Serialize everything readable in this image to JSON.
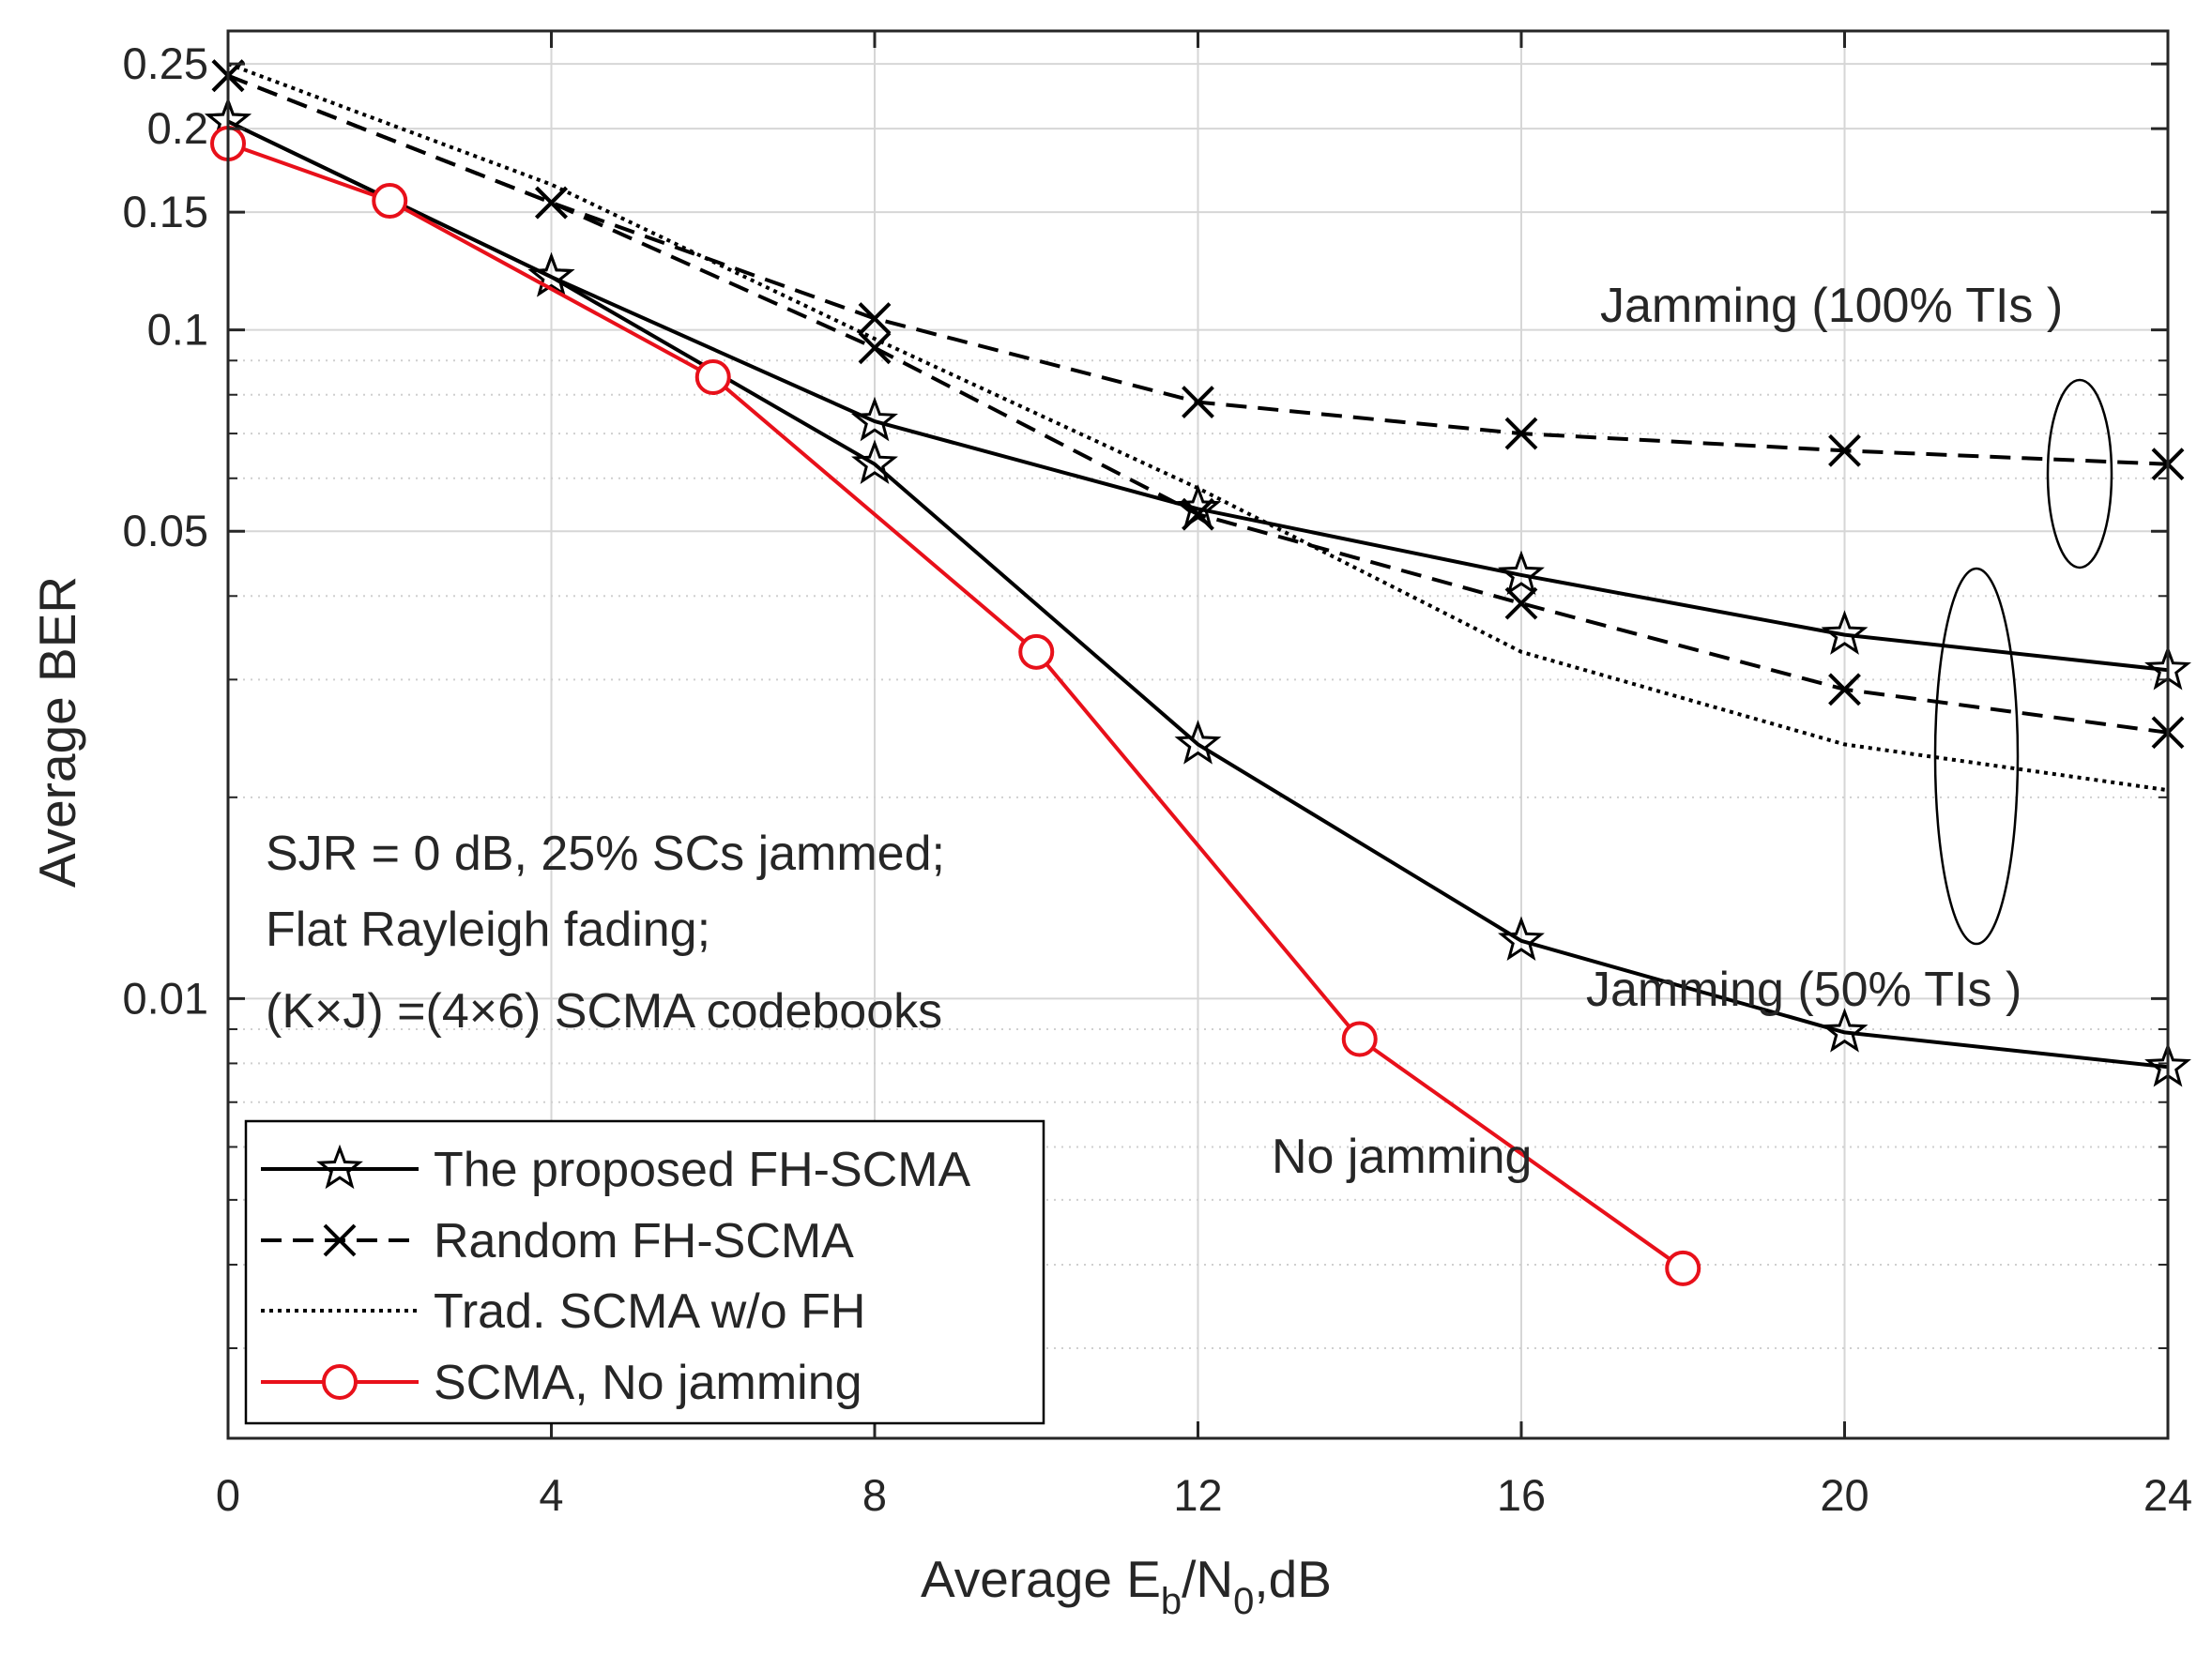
{
  "chart_data": {
    "type": "line",
    "title": "",
    "xlabel": "Average E_b/N_0,dB",
    "xlabel_parts": {
      "main": "Average E",
      "sub1": "b",
      "mid": "/N",
      "sub2": "0",
      "end": ",dB"
    },
    "ylabel": "Average BER",
    "xlim": [
      0,
      24
    ],
    "ylim": [
      0.0022,
      0.28
    ],
    "yscale": "log",
    "grid": true,
    "x_ticks": [
      0,
      4,
      8,
      12,
      16,
      20,
      24
    ],
    "x_tick_labels": [
      "0",
      "4",
      "8",
      "12",
      "16",
      "20",
      "24"
    ],
    "y_ticks": [
      0.25,
      0.2,
      0.15,
      0.1,
      0.05,
      0.01
    ],
    "y_tick_labels": [
      "0.25",
      "0.2",
      "0.15",
      "0.1",
      "0.05",
      "0.01"
    ],
    "y_minor_grid": [
      0.002,
      0.003,
      0.004,
      0.005,
      0.006,
      0.007,
      0.008,
      0.009,
      0.02,
      0.03,
      0.04,
      0.06,
      0.07,
      0.08,
      0.09
    ],
    "series": [
      {
        "name": "The proposed FH-SCMA (100% TIs)",
        "legend": true,
        "legend_label": "The proposed FH-SCMA",
        "style": "solid",
        "marker": "star",
        "color": "#000000",
        "x": [
          0,
          4,
          8,
          12,
          16,
          20,
          24
        ],
        "y": [
          0.205,
          0.12,
          0.073,
          0.054,
          0.043,
          0.035,
          0.031
        ]
      },
      {
        "name": "The proposed FH-SCMA (50% TIs)",
        "legend": false,
        "style": "solid",
        "marker": "star",
        "color": "#000000",
        "x": [
          0,
          4,
          8,
          12,
          16,
          20,
          24
        ],
        "y": [
          0.205,
          0.12,
          0.063,
          0.024,
          0.0122,
          0.0089,
          0.0079
        ]
      },
      {
        "name": "Random FH-SCMA (100% TIs)",
        "legend": true,
        "legend_label": "Random FH-SCMA",
        "style": "dashed",
        "marker": "x",
        "color": "#000000",
        "x": [
          0,
          4,
          8,
          12,
          16,
          20,
          24
        ],
        "y": [
          0.24,
          0.155,
          0.104,
          0.078,
          0.07,
          0.066,
          0.063
        ]
      },
      {
        "name": "Random FH-SCMA (50% TIs)",
        "legend": false,
        "style": "dashed",
        "marker": "x",
        "color": "#000000",
        "x": [
          0,
          4,
          8,
          12,
          16,
          20,
          24
        ],
        "y": [
          0.24,
          0.155,
          0.094,
          0.053,
          0.039,
          0.029,
          0.025
        ]
      },
      {
        "name": "Trad. SCMA w/o FH",
        "legend": true,
        "legend_label": "Trad. SCMA w/o FH",
        "style": "dotted",
        "marker": "none",
        "color": "#000000",
        "x": [
          0,
          4,
          8,
          12,
          16,
          20,
          24
        ],
        "y": [
          0.25,
          0.165,
          0.097,
          0.058,
          0.033,
          0.024,
          0.0205
        ]
      },
      {
        "name": "SCMA, No jamming",
        "legend": true,
        "legend_label": "SCMA, No jamming",
        "style": "solid",
        "marker": "circle",
        "color": "#e8101a",
        "x": [
          0,
          2,
          6,
          10,
          14,
          18
        ],
        "y": [
          0.19,
          0.156,
          0.085,
          0.033,
          0.0087,
          0.00395
        ]
      }
    ],
    "annotations": [
      {
        "name": "jamming-100-label",
        "text": "Jamming (100% TIs )"
      },
      {
        "name": "jamming-50-label",
        "text": "Jamming (50% TIs )"
      },
      {
        "name": "no-jamming-label",
        "text": "No jamming"
      },
      {
        "name": "condition-line-1",
        "text": "SJR = 0 dB,  25% SCs jammed;"
      },
      {
        "name": "condition-line-2",
        "text": "Flat Rayleigh fading;"
      },
      {
        "name": "condition-line-3",
        "text": "(K×J) =(4×6) SCMA codebooks"
      }
    ],
    "legend_position": "bottom-left"
  }
}
